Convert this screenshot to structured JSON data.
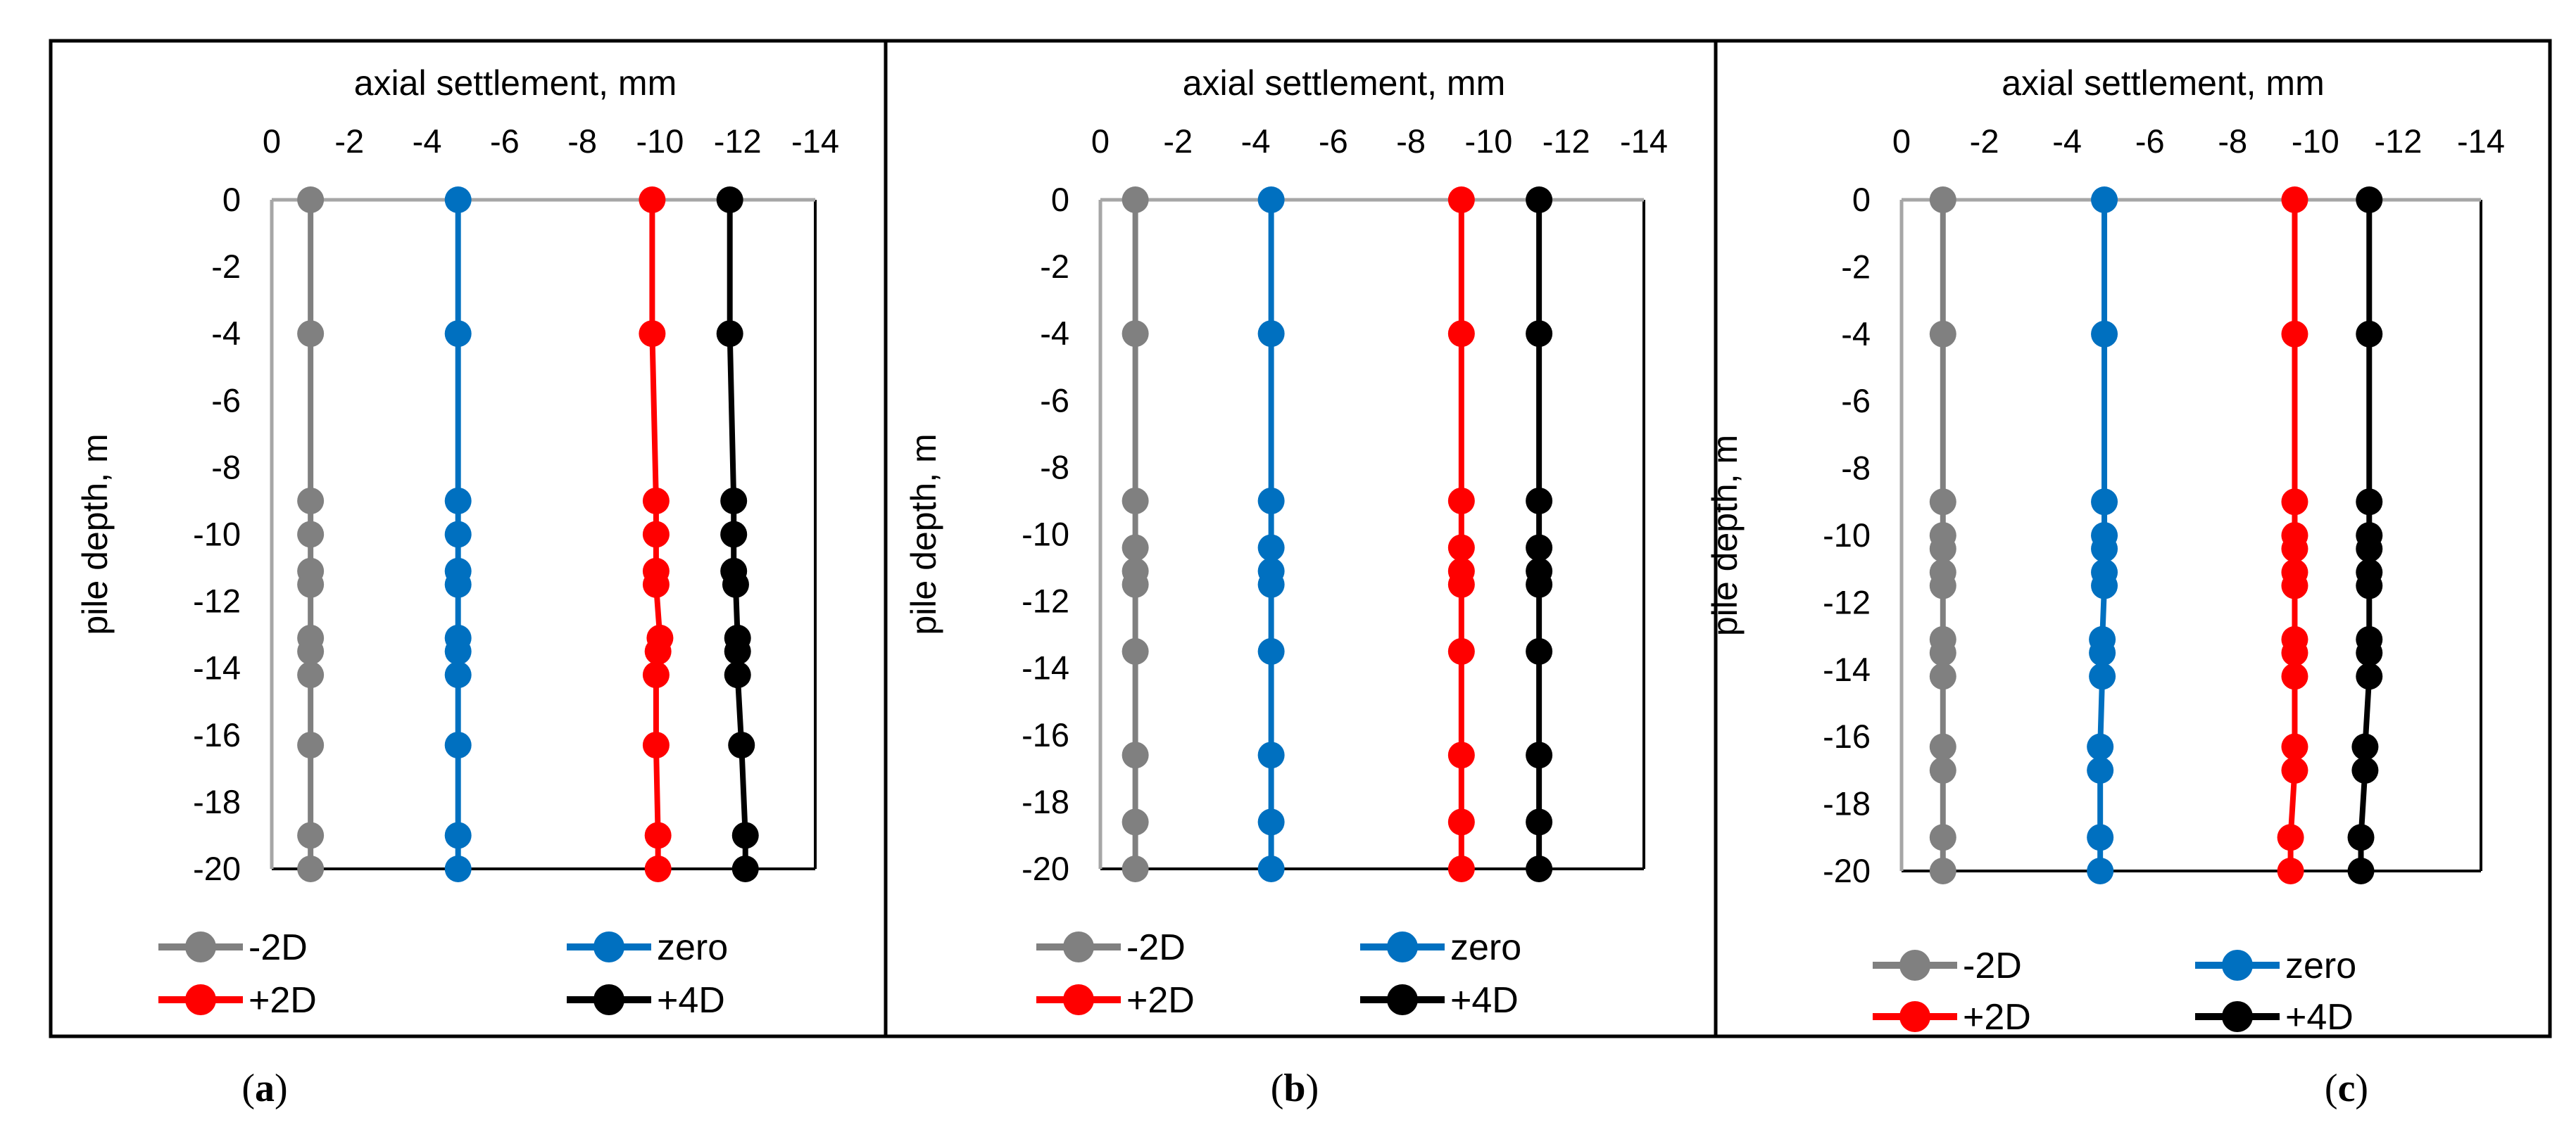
{
  "figure": {
    "colors": {
      "-2D": "#808080",
      "zero": "#0070C0",
      "+2D": "#FF0000",
      "+4D": "#000000",
      "axis": "#A6A6A6",
      "frame": "#000000"
    }
  },
  "chart_data": [
    {
      "type": "line",
      "panel_label": "a",
      "xlabel": "axial settlement, mm",
      "ylabel": "pile depth, m",
      "xlim": [
        0,
        -14
      ],
      "x_ticks": [
        "0",
        "-2",
        "-4",
        "-6",
        "-8",
        "-10",
        "-12",
        "-14"
      ],
      "ylim": [
        -20,
        0
      ],
      "y_ticks": [
        "0",
        "-2",
        "-4",
        "-6",
        "-8",
        "-10",
        "-12",
        "-14",
        "-16",
        "-18",
        "-20"
      ],
      "legend": [
        "-2D",
        "zero",
        "+2D",
        "+4D"
      ],
      "series": [
        {
          "name": "-2D",
          "depth": [
            0,
            -4,
            -9,
            -10,
            -11.1,
            -11.5,
            -13.1,
            -13.5,
            -14.2,
            -16.3,
            -19,
            -20
          ],
          "settlement": [
            -1,
            -1,
            -1,
            -1,
            -1,
            -1,
            -1,
            -1,
            -1,
            -1,
            -1,
            -1
          ]
        },
        {
          "name": "zero",
          "depth": [
            0,
            -4,
            -9,
            -10,
            -11.1,
            -11.5,
            -13.1,
            -13.5,
            -14.2,
            -16.3,
            -19,
            -20
          ],
          "settlement": [
            -4.8,
            -4.8,
            -4.8,
            -4.8,
            -4.8,
            -4.8,
            -4.8,
            -4.8,
            -4.8,
            -4.8,
            -4.8,
            -4.8
          ]
        },
        {
          "name": "+2D",
          "depth": [
            0,
            -4,
            -9,
            -10,
            -11.1,
            -11.5,
            -13.1,
            -13.5,
            -14.2,
            -16.3,
            -19,
            -20
          ],
          "settlement": [
            -9.8,
            -9.8,
            -9.9,
            -9.9,
            -9.9,
            -9.9,
            -10.0,
            -9.95,
            -9.9,
            -9.9,
            -9.95,
            -9.95
          ]
        },
        {
          "name": "+4D",
          "depth": [
            0,
            -4,
            -9,
            -10,
            -11.1,
            -11.5,
            -13.1,
            -13.5,
            -14.2,
            -16.3,
            -19,
            -20
          ],
          "settlement": [
            -11.8,
            -11.8,
            -11.9,
            -11.9,
            -11.9,
            -11.95,
            -12.0,
            -12.0,
            -12.0,
            -12.1,
            -12.2,
            -12.2
          ]
        }
      ]
    },
    {
      "type": "line",
      "panel_label": "b",
      "xlabel": "axial settlement, mm",
      "ylabel": "pile depth, m",
      "xlim": [
        0,
        -14
      ],
      "x_ticks": [
        "0",
        "-2",
        "-4",
        "-6",
        "-8",
        "-10",
        "-12",
        "-14"
      ],
      "ylim": [
        -20,
        0
      ],
      "y_ticks": [
        "0",
        "-2",
        "-4",
        "-6",
        "-8",
        "-10",
        "-12",
        "-14",
        "-16",
        "-18",
        "-20"
      ],
      "legend": [
        "-2D",
        "zero",
        "+2D",
        "+4D"
      ],
      "series": [
        {
          "name": "-2D",
          "depth": [
            0,
            -4,
            -9,
            -10.4,
            -11.1,
            -11.5,
            -13.5,
            -16.6,
            -18.6,
            -20
          ],
          "settlement": [
            -0.9,
            -0.9,
            -0.9,
            -0.9,
            -0.9,
            -0.9,
            -0.9,
            -0.9,
            -0.9,
            -0.9
          ]
        },
        {
          "name": "zero",
          "depth": [
            0,
            -4,
            -9,
            -10.4,
            -11.1,
            -11.5,
            -13.5,
            -16.6,
            -18.6,
            -20
          ],
          "settlement": [
            -4.4,
            -4.4,
            -4.4,
            -4.4,
            -4.4,
            -4.4,
            -4.4,
            -4.4,
            -4.4,
            -4.4
          ]
        },
        {
          "name": "+2D",
          "depth": [
            0,
            -4,
            -9,
            -10.4,
            -11.1,
            -11.5,
            -13.5,
            -16.6,
            -18.6,
            -20
          ],
          "settlement": [
            -9.3,
            -9.3,
            -9.3,
            -9.3,
            -9.3,
            -9.3,
            -9.3,
            -9.3,
            -9.3,
            -9.3
          ]
        },
        {
          "name": "+4D",
          "depth": [
            0,
            -4,
            -9,
            -10.4,
            -11.1,
            -11.5,
            -13.5,
            -16.6,
            -18.6,
            -20
          ],
          "settlement": [
            -11.3,
            -11.3,
            -11.3,
            -11.3,
            -11.3,
            -11.3,
            -11.3,
            -11.3,
            -11.3,
            -11.3
          ]
        }
      ]
    },
    {
      "type": "line",
      "panel_label": "c",
      "xlabel": "axial settlement, mm",
      "ylabel": "pile depth, m",
      "xlim": [
        0,
        -14
      ],
      "x_ticks": [
        "0",
        "-2",
        "-4",
        "-6",
        "-8",
        "-10",
        "-12",
        "-14"
      ],
      "ylim": [
        -20,
        0
      ],
      "y_ticks": [
        "0",
        "-2",
        "-4",
        "-6",
        "-8",
        "-10",
        "-12",
        "-14",
        "-16",
        "-18",
        "-20"
      ],
      "legend": [
        "-2D",
        "zero",
        "+2D",
        "+4D"
      ],
      "series": [
        {
          "name": "-2D",
          "depth": [
            0,
            -4,
            -9,
            -10,
            -10.4,
            -11.1,
            -11.5,
            -13.1,
            -13.5,
            -14.2,
            -16.3,
            -17,
            -19,
            -20
          ],
          "settlement": [
            -1,
            -1,
            -1,
            -1,
            -1,
            -1,
            -1,
            -1,
            -1,
            -1,
            -1,
            -1,
            -1,
            -1
          ]
        },
        {
          "name": "zero",
          "depth": [
            0,
            -4,
            -9,
            -10,
            -10.4,
            -11.1,
            -11.5,
            -13.1,
            -13.5,
            -14.2,
            -16.3,
            -17,
            -19,
            -20
          ],
          "settlement": [
            -4.9,
            -4.9,
            -4.9,
            -4.9,
            -4.9,
            -4.9,
            -4.9,
            -4.85,
            -4.85,
            -4.85,
            -4.8,
            -4.8,
            -4.8,
            -4.8
          ]
        },
        {
          "name": "+2D",
          "depth": [
            0,
            -4,
            -9,
            -10,
            -10.4,
            -11.1,
            -11.5,
            -13.1,
            -13.5,
            -14.2,
            -16.3,
            -17,
            -19,
            -20
          ],
          "settlement": [
            -9.5,
            -9.5,
            -9.5,
            -9.5,
            -9.5,
            -9.5,
            -9.5,
            -9.5,
            -9.5,
            -9.5,
            -9.5,
            -9.5,
            -9.4,
            -9.4
          ]
        },
        {
          "name": "+4D",
          "depth": [
            0,
            -4,
            -9,
            -10,
            -10.4,
            -11.1,
            -11.5,
            -13.1,
            -13.5,
            -14.2,
            -16.3,
            -17,
            -19,
            -20
          ],
          "settlement": [
            -11.3,
            -11.3,
            -11.3,
            -11.3,
            -11.3,
            -11.3,
            -11.3,
            -11.3,
            -11.3,
            -11.3,
            -11.2,
            -11.2,
            -11.1,
            -11.1
          ]
        }
      ]
    }
  ]
}
